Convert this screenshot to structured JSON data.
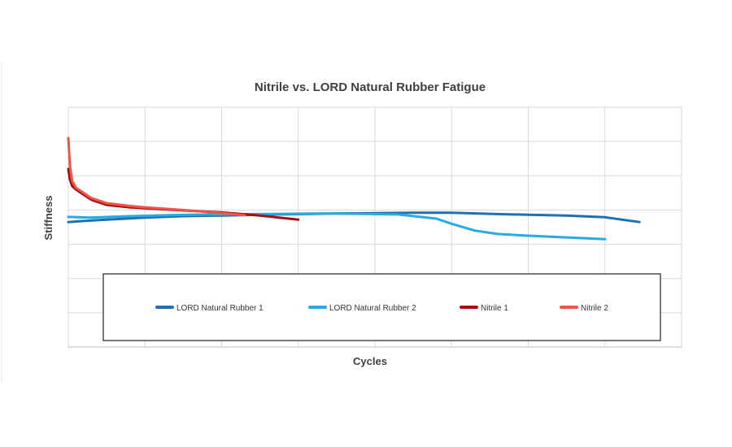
{
  "chart_data": {
    "type": "line",
    "title": "Nitrile vs. LORD Natural Rubber Fatigue",
    "xlabel": "Cycles",
    "ylabel": "Stiffness",
    "xlim": [
      0,
      8
    ],
    "ylim": [
      0,
      7
    ],
    "grid": true,
    "legend_position": "bottom",
    "colors": {
      "LORD Natural Rubber 1": "#1f6fb5",
      "LORD Natural Rubber 2": "#29abe2",
      "Nitrile 1": "#a50f0f",
      "Nitrile 2": "#f0554a"
    },
    "series": [
      {
        "name": "LORD Natural Rubber 1",
        "x": [
          0,
          0.2,
          0.5,
          1.0,
          1.5,
          2.0,
          2.5,
          3.0,
          3.5,
          4.0,
          4.5,
          5.0,
          5.5,
          6.0,
          6.5,
          7.0,
          7.45
        ],
        "y": [
          3.65,
          3.68,
          3.72,
          3.78,
          3.82,
          3.84,
          3.86,
          3.88,
          3.9,
          3.91,
          3.92,
          3.92,
          3.89,
          3.86,
          3.84,
          3.79,
          3.65
        ]
      },
      {
        "name": "LORD Natural Rubber 2",
        "x": [
          0,
          0.3,
          0.8,
          1.3,
          1.8,
          2.3,
          2.8,
          3.3,
          3.8,
          4.3,
          4.8,
          5.0,
          5.3,
          5.6,
          6.0,
          6.5,
          7.0
        ],
        "y": [
          3.8,
          3.78,
          3.82,
          3.85,
          3.87,
          3.88,
          3.89,
          3.9,
          3.89,
          3.87,
          3.75,
          3.6,
          3.4,
          3.3,
          3.25,
          3.2,
          3.15
        ]
      },
      {
        "name": "Nitrile 1",
        "x": [
          0,
          0.02,
          0.05,
          0.1,
          0.2,
          0.3,
          0.5,
          0.8,
          1.0,
          1.5,
          2.0,
          2.5,
          3.0
        ],
        "y": [
          5.2,
          4.9,
          4.7,
          4.6,
          4.45,
          4.3,
          4.15,
          4.08,
          4.05,
          3.99,
          3.93,
          3.84,
          3.72
        ]
      },
      {
        "name": "Nitrile 2",
        "x": [
          0,
          0.02,
          0.05,
          0.1,
          0.2,
          0.3,
          0.5,
          0.8,
          1.0,
          1.5,
          2.0,
          2.3
        ],
        "y": [
          6.1,
          5.3,
          4.85,
          4.65,
          4.5,
          4.35,
          4.2,
          4.12,
          4.08,
          4.0,
          3.91,
          3.85
        ]
      }
    ]
  }
}
